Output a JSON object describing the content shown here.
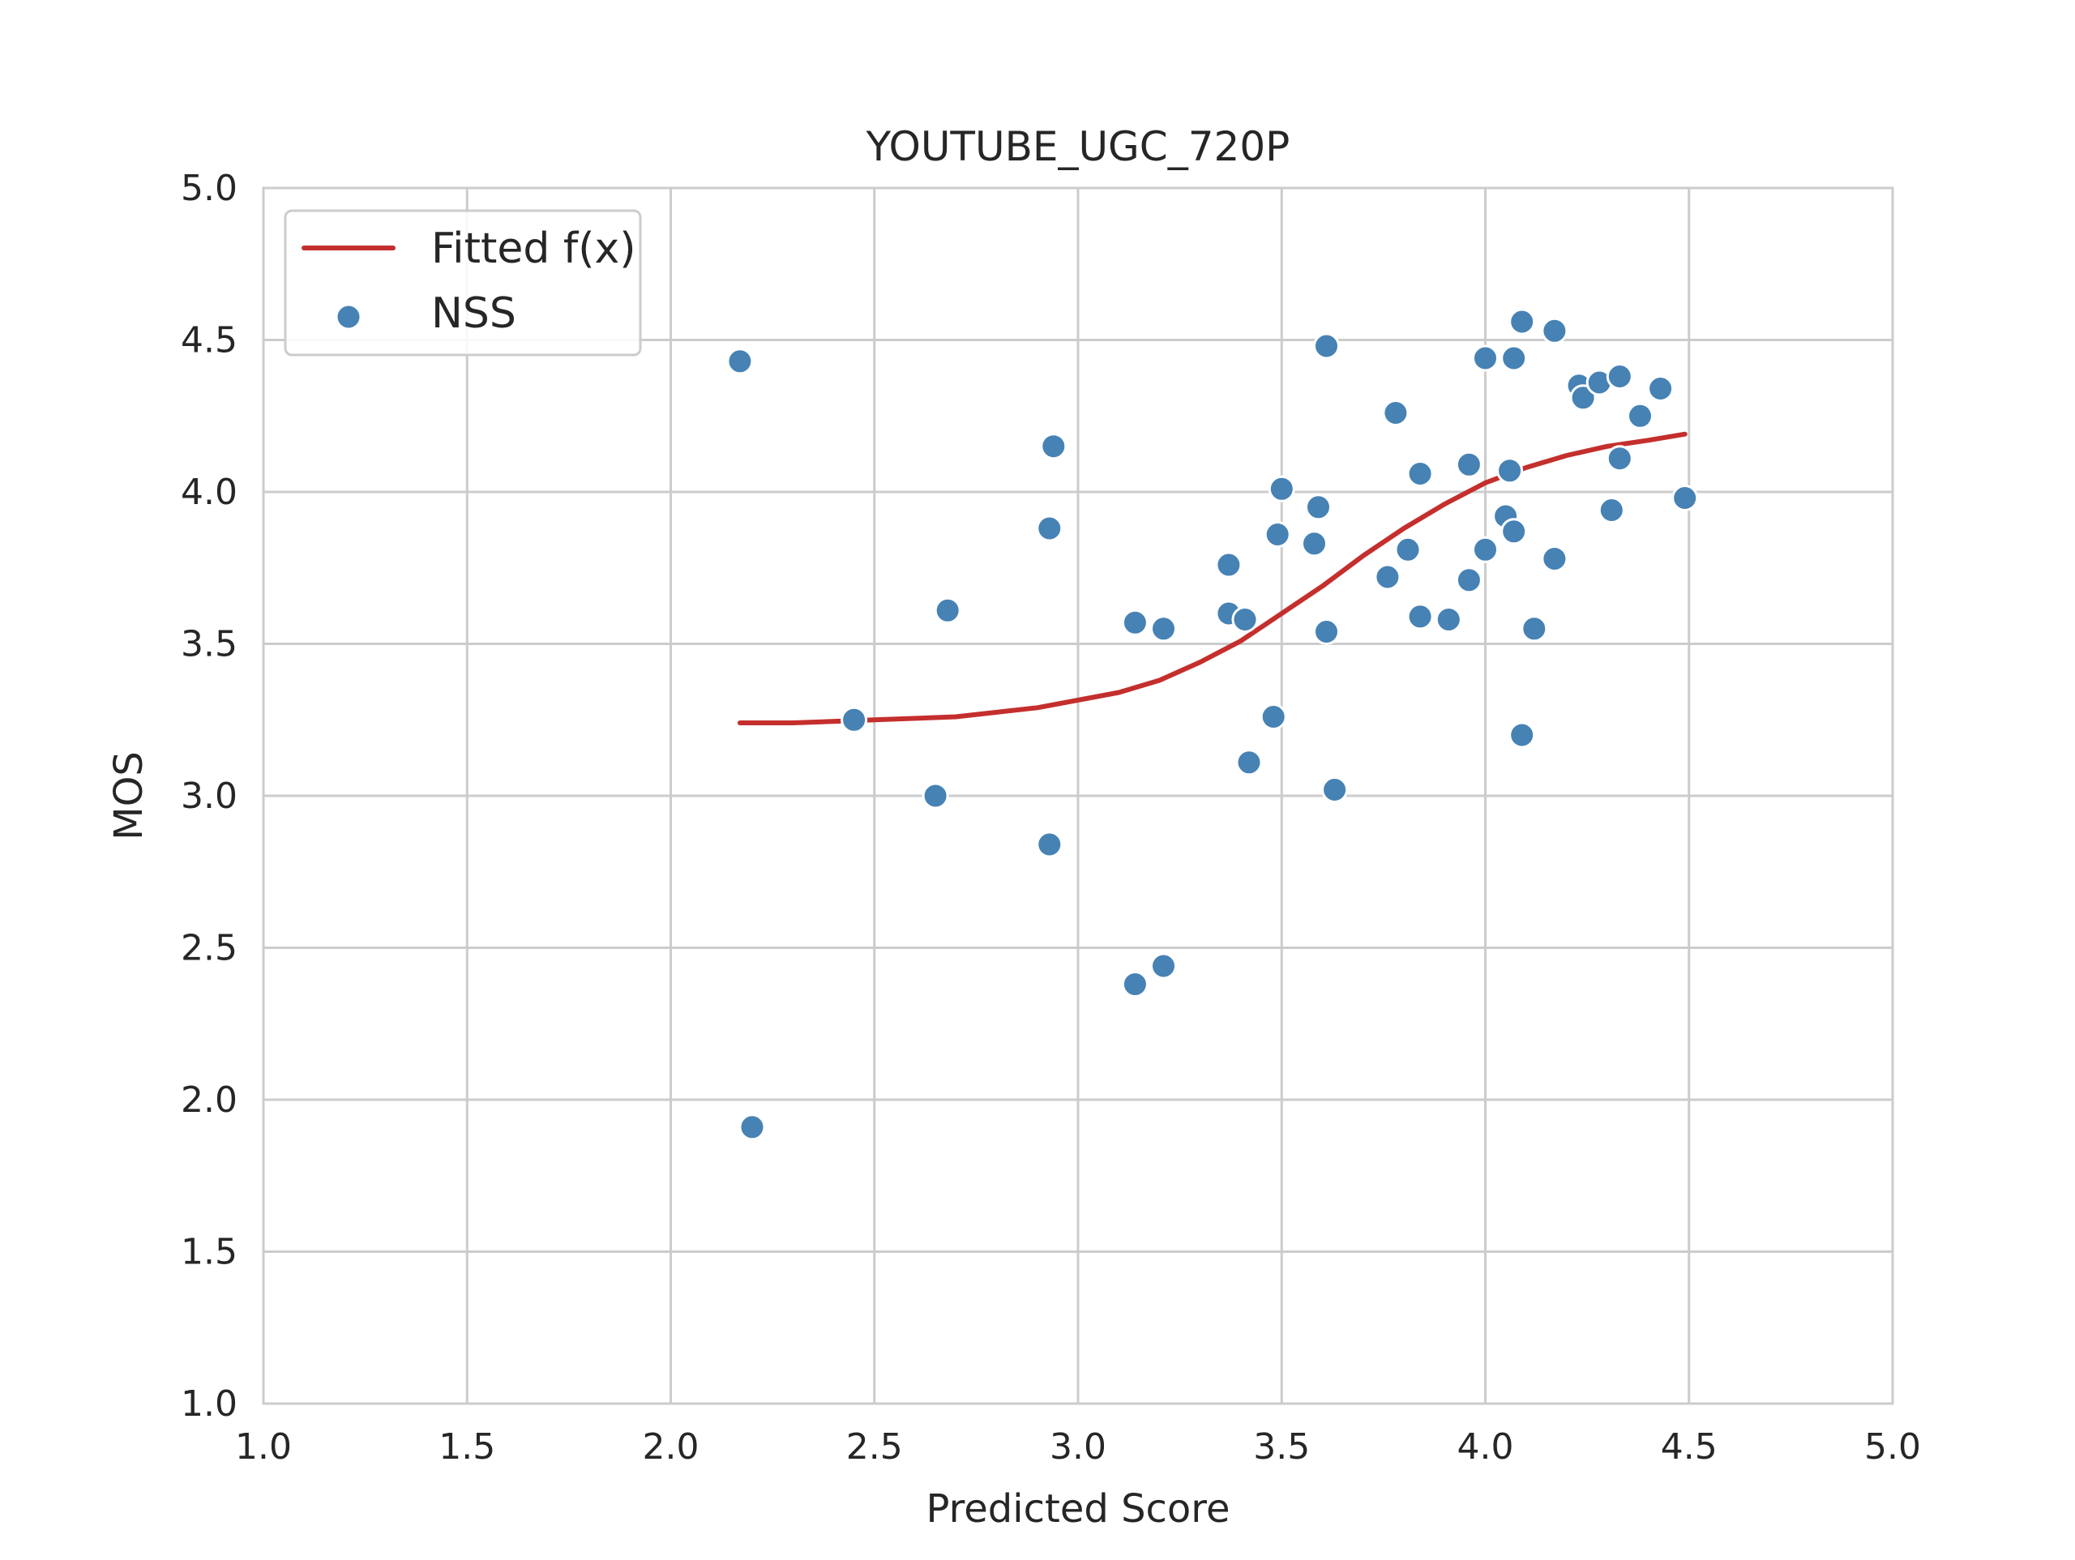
{
  "chart_data": {
    "type": "scatter",
    "title": "YOUTUBE_UGC_720P",
    "xlabel": "Predicted Score",
    "ylabel": "MOS",
    "xlim": [
      1.0,
      5.0
    ],
    "ylim": [
      1.0,
      5.0
    ],
    "xticks": [
      "1.0",
      "1.5",
      "2.0",
      "2.5",
      "3.0",
      "3.5",
      "4.0",
      "4.5",
      "5.0"
    ],
    "yticks": [
      "1.0",
      "1.5",
      "2.0",
      "2.5",
      "3.0",
      "3.5",
      "4.0",
      "4.5",
      "5.0"
    ],
    "grid": true,
    "legend_position": "top-left",
    "colors": {
      "line": "#c42f2d",
      "points": "#4682b4",
      "grid": "#cccccc"
    },
    "series": [
      {
        "name": "Fitted f(x)",
        "kind": "line",
        "x": [
          2.17,
          2.3,
          2.5,
          2.7,
          2.9,
          3.1,
          3.2,
          3.3,
          3.4,
          3.5,
          3.6,
          3.7,
          3.8,
          3.9,
          4.0,
          4.1,
          4.2,
          4.3,
          4.4,
          4.49
        ],
        "y": [
          3.24,
          3.24,
          3.25,
          3.26,
          3.29,
          3.34,
          3.38,
          3.44,
          3.51,
          3.6,
          3.69,
          3.79,
          3.88,
          3.96,
          4.03,
          4.08,
          4.12,
          4.15,
          4.17,
          4.19
        ]
      },
      {
        "name": "NSS",
        "kind": "scatter",
        "points": [
          [
            2.17,
            4.43
          ],
          [
            2.2,
            1.91
          ],
          [
            2.45,
            3.25
          ],
          [
            2.65,
            3.0
          ],
          [
            2.68,
            3.61
          ],
          [
            2.93,
            3.88
          ],
          [
            2.93,
            2.84
          ],
          [
            2.94,
            4.15
          ],
          [
            3.14,
            3.57
          ],
          [
            3.14,
            2.38
          ],
          [
            3.21,
            3.55
          ],
          [
            3.21,
            2.44
          ],
          [
            3.37,
            3.76
          ],
          [
            3.37,
            3.6
          ],
          [
            3.41,
            3.58
          ],
          [
            3.42,
            3.11
          ],
          [
            3.48,
            3.26
          ],
          [
            3.49,
            3.86
          ],
          [
            3.5,
            4.01
          ],
          [
            3.58,
            3.83
          ],
          [
            3.59,
            3.95
          ],
          [
            3.61,
            4.48
          ],
          [
            3.61,
            3.54
          ],
          [
            3.63,
            3.02
          ],
          [
            3.76,
            3.72
          ],
          [
            3.78,
            4.26
          ],
          [
            3.81,
            3.81
          ],
          [
            3.84,
            4.06
          ],
          [
            3.84,
            3.59
          ],
          [
            3.91,
            3.58
          ],
          [
            3.96,
            4.09
          ],
          [
            3.96,
            3.71
          ],
          [
            4.0,
            3.81
          ],
          [
            4.0,
            4.44
          ],
          [
            4.05,
            3.92
          ],
          [
            4.06,
            4.07
          ],
          [
            4.07,
            4.44
          ],
          [
            4.07,
            3.87
          ],
          [
            4.09,
            4.56
          ],
          [
            4.09,
            3.2
          ],
          [
            4.12,
            3.55
          ],
          [
            4.17,
            4.53
          ],
          [
            4.17,
            3.78
          ],
          [
            4.23,
            4.35
          ],
          [
            4.24,
            4.31
          ],
          [
            4.28,
            4.36
          ],
          [
            4.31,
            3.94
          ],
          [
            4.33,
            4.38
          ],
          [
            4.33,
            4.11
          ],
          [
            4.38,
            4.25
          ],
          [
            4.43,
            4.34
          ],
          [
            4.49,
            3.98
          ]
        ]
      }
    ]
  }
}
